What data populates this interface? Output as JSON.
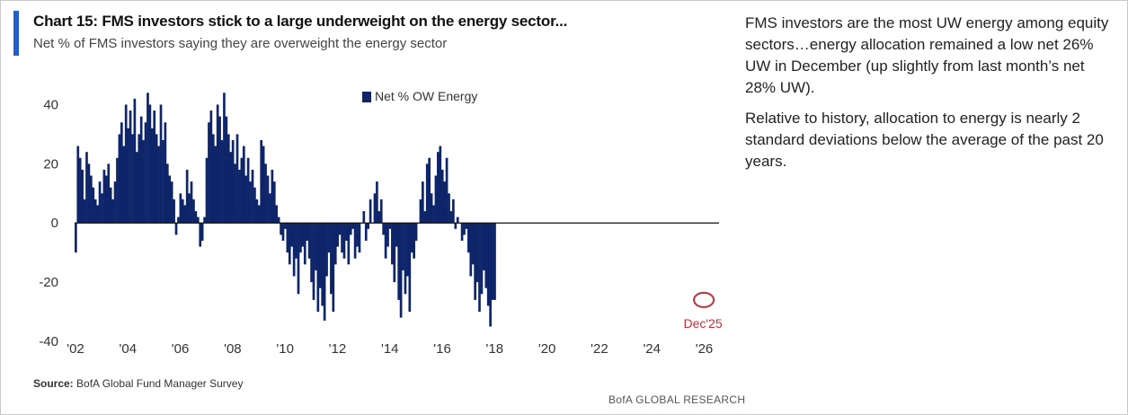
{
  "chart_data": {
    "type": "bar",
    "title": "Chart 15: FMS investors stick to a large underweight on the energy sector...",
    "subtitle": "Net % of FMS investors saying they are overweight the energy sector",
    "ylim": [
      -40,
      45
    ],
    "yticks": [
      40,
      20,
      0,
      -20,
      -40
    ],
    "xlim": [
      2002.0,
      2026.6
    ],
    "xticks": [
      2002,
      2004,
      2006,
      2008,
      2010,
      2012,
      2014,
      2016,
      2018,
      2020,
      2022,
      2024,
      2026
    ],
    "xtick_labels": [
      "'02",
      "'04",
      "'06",
      "'08",
      "'10",
      "'12",
      "'14",
      "'16",
      "'18",
      "'20",
      "'22",
      "'24",
      "'26"
    ],
    "legend": {
      "position": "top-center",
      "entries": [
        "Net % OW Energy"
      ]
    },
    "annotation": {
      "text": "Dec'25",
      "x": 2025.95,
      "y": -26
    },
    "series": [
      {
        "name": "Net % OW Energy",
        "color": "#0e2569",
        "x_start": 2002.0,
        "step": 0.0833,
        "values": [
          -10,
          26,
          22,
          18,
          8,
          24,
          20,
          16,
          12,
          8,
          6,
          14,
          10,
          18,
          16,
          20,
          12,
          8,
          14,
          22,
          30,
          34,
          26,
          40,
          32,
          38,
          30,
          42,
          24,
          30,
          36,
          28,
          34,
          44,
          40,
          32,
          38,
          30,
          26,
          40,
          28,
          34,
          20,
          16,
          14,
          8,
          -4,
          2,
          10,
          8,
          6,
          18,
          10,
          14,
          8,
          4,
          2,
          -8,
          -6,
          2,
          22,
          34,
          38,
          30,
          26,
          40,
          36,
          28,
          44,
          36,
          30,
          24,
          28,
          20,
          30,
          18,
          22,
          26,
          16,
          22,
          14,
          18,
          12,
          8,
          6,
          28,
          26,
          20,
          16,
          10,
          18,
          14,
          6,
          2,
          -4,
          -6,
          -2,
          -10,
          -14,
          -8,
          -18,
          -12,
          -24,
          -10,
          -8,
          -14,
          -6,
          -12,
          -20,
          -26,
          -16,
          -30,
          -22,
          -28,
          -33,
          -18,
          -10,
          -24,
          -30,
          -14,
          -8,
          -4,
          -10,
          -12,
          -6,
          -14,
          -4,
          -2,
          -12,
          -8,
          -10,
          0,
          4,
          -6,
          -2,
          8,
          0,
          10,
          14,
          4,
          8,
          -4,
          -12,
          -8,
          -2,
          -14,
          -20,
          -8,
          -26,
          -32,
          -16,
          -24,
          -18,
          -30,
          -10,
          -12,
          -6,
          0,
          8,
          14,
          4,
          20,
          22,
          10,
          6,
          16,
          24,
          26,
          18,
          14,
          22,
          10,
          4,
          8,
          -2,
          2,
          0,
          -6,
          -4,
          -2,
          -10,
          -18,
          -14,
          -26,
          -20,
          -30,
          -24,
          -16,
          -22,
          -28,
          -35,
          -26,
          -26
        ]
      }
    ]
  },
  "legend_label": "Net % OW Energy",
  "source_label": "Source:",
  "source_text": "BofA Global Fund Manager Survey",
  "brand": "BofA GLOBAL RESEARCH",
  "commentary": {
    "p1": "FMS investors are the most UW energy among equity sectors…energy allocation remained a low net 26% UW in December (up slightly from last month’s net 28% UW).",
    "p2": "Relative to history, allocation to energy is nearly 2 standard deviations below the average of the past 20 years."
  },
  "colors": {
    "accent": "#1f5fd1",
    "bars": "#0e2569",
    "annotation": "#c0303b"
  }
}
